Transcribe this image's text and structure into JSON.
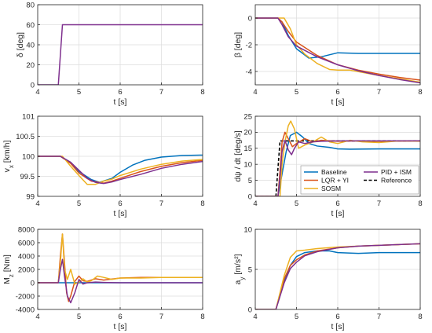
{
  "colors": {
    "baseline": "#0072BD",
    "lqr": "#D95319",
    "sosm": "#EDB120",
    "pid": "#7E2F8E",
    "reference": "#000000",
    "axis": "#262626",
    "grid": "#dcdcdc"
  },
  "chart_data": [
    {
      "type": "line",
      "id": "delta",
      "xlabel": "t [s]",
      "ylabel": "δ [deg]",
      "xlim": [
        4,
        8
      ],
      "ylim": [
        0,
        80
      ],
      "xticks": [
        4,
        5,
        6,
        7,
        8
      ],
      "yticks": [
        0,
        20,
        40,
        60,
        80
      ],
      "grid": true,
      "series": [
        {
          "key": "pid",
          "x": [
            4,
            4.5,
            4.6,
            8
          ],
          "y": [
            0,
            0,
            60,
            60
          ]
        }
      ]
    },
    {
      "type": "line",
      "id": "beta",
      "xlabel": "t [s]",
      "ylabel": "β [deg]",
      "xlim": [
        4,
        8
      ],
      "ylim": [
        -5,
        1
      ],
      "xticks": [
        4,
        5,
        6,
        7,
        8
      ],
      "yticks": [
        -4,
        -2,
        0
      ],
      "grid": true,
      "series": [
        {
          "key": "baseline",
          "x": [
            4,
            4.55,
            4.65,
            4.8,
            5.0,
            5.3,
            5.6,
            6.0,
            6.5,
            7.0,
            8.0
          ],
          "y": [
            0,
            0,
            -0.3,
            -1.3,
            -2.3,
            -3.0,
            -2.9,
            -2.6,
            -2.65,
            -2.65,
            -2.65
          ]
        },
        {
          "key": "lqr",
          "x": [
            4,
            4.55,
            4.65,
            4.8,
            5.0,
            5.5,
            6.0,
            6.5,
            7.0,
            7.5,
            8.0
          ],
          "y": [
            0,
            0,
            -0.3,
            -1.0,
            -1.8,
            -2.8,
            -3.5,
            -3.9,
            -4.2,
            -4.45,
            -4.65
          ]
        },
        {
          "key": "sosm",
          "x": [
            4,
            4.6,
            4.7,
            4.85,
            5.0,
            5.2,
            5.5,
            5.8,
            6.0,
            6.3,
            7.0,
            8.0
          ],
          "y": [
            0,
            0,
            0,
            -0.8,
            -2.0,
            -2.7,
            -3.4,
            -3.85,
            -3.9,
            -3.9,
            -4.3,
            -4.8
          ]
        },
        {
          "key": "pid",
          "x": [
            4,
            4.55,
            4.65,
            4.8,
            5.0,
            5.5,
            6.0,
            6.5,
            7.0,
            7.5,
            8.0
          ],
          "y": [
            0,
            0,
            -0.5,
            -1.4,
            -2.1,
            -2.9,
            -3.5,
            -3.95,
            -4.3,
            -4.6,
            -4.85
          ]
        }
      ]
    },
    {
      "type": "line",
      "id": "vx",
      "xlabel": "t [s]",
      "ylabel": "v_x [km/h]",
      "xlim": [
        4,
        8
      ],
      "ylim": [
        99,
        101
      ],
      "xticks": [
        4,
        5,
        6,
        7,
        8
      ],
      "yticks": [
        99,
        99.5,
        100,
        100.5,
        101
      ],
      "grid": true,
      "series": [
        {
          "key": "baseline",
          "x": [
            4,
            4.55,
            4.8,
            5.0,
            5.3,
            5.5,
            5.8,
            6.0,
            6.3,
            6.6,
            7.0,
            7.5,
            8.0
          ],
          "y": [
            100,
            100,
            99.85,
            99.62,
            99.42,
            99.35,
            99.45,
            99.6,
            99.78,
            99.9,
            99.98,
            100.02,
            100.03
          ]
        },
        {
          "key": "lqr",
          "x": [
            4,
            4.55,
            4.8,
            5.0,
            5.3,
            5.6,
            5.8,
            6.0,
            6.5,
            7.0,
            7.5,
            8.0
          ],
          "y": [
            100,
            100,
            99.82,
            99.58,
            99.38,
            99.33,
            99.38,
            99.45,
            99.62,
            99.75,
            99.84,
            99.9
          ]
        },
        {
          "key": "sosm",
          "x": [
            4,
            4.6,
            4.8,
            5.0,
            5.2,
            5.4,
            5.6,
            5.8,
            6.0,
            6.5,
            7.0,
            7.5,
            8.0
          ],
          "y": [
            100,
            100,
            99.75,
            99.52,
            99.3,
            99.3,
            99.38,
            99.43,
            99.52,
            99.68,
            99.8,
            99.88,
            99.92
          ]
        },
        {
          "key": "pid",
          "x": [
            4,
            4.55,
            4.8,
            5.0,
            5.2,
            5.4,
            5.6,
            5.8,
            6.0,
            6.5,
            7.0,
            7.5,
            8.0
          ],
          "y": [
            100,
            100,
            99.85,
            99.65,
            99.45,
            99.35,
            99.32,
            99.36,
            99.42,
            99.55,
            99.7,
            99.8,
            99.87
          ]
        }
      ]
    },
    {
      "type": "line",
      "id": "yawrate",
      "xlabel": "t [s]",
      "ylabel": "dψ / dt [deg/s]",
      "xlim": [
        4,
        8
      ],
      "ylim": [
        0,
        25
      ],
      "xticks": [
        4,
        5,
        6,
        7,
        8
      ],
      "yticks": [
        0,
        5,
        10,
        15,
        20,
        25
      ],
      "grid": true,
      "legend": {
        "placement": "lower-right",
        "columns": 2,
        "entries": [
          {
            "key": "baseline",
            "label": "Baseline",
            "dashed": false
          },
          {
            "key": "pid",
            "label": "PID + ISM",
            "dashed": false
          },
          {
            "key": "lqr",
            "label": "LQR + YI",
            "dashed": false
          },
          {
            "key": "reference",
            "label": "Reference",
            "dashed": true
          },
          {
            "key": "sosm",
            "label": "SOSM",
            "dashed": false
          }
        ]
      },
      "series": [
        {
          "key": "reference",
          "dashed": true,
          "x": [
            4,
            4.5,
            4.6,
            8
          ],
          "y": [
            0,
            0,
            17.3,
            17.3
          ]
        },
        {
          "key": "baseline",
          "x": [
            4,
            4.55,
            4.65,
            4.75,
            4.85,
            5.0,
            5.15,
            5.3,
            5.5,
            5.8,
            6.0,
            6.3,
            7.0,
            8.0
          ],
          "y": [
            0,
            0,
            7,
            14,
            19,
            20,
            18.5,
            16.5,
            15.7,
            15.3,
            14.8,
            14.7,
            14.8,
            14.8
          ]
        },
        {
          "key": "lqr",
          "x": [
            4,
            4.55,
            4.6,
            4.65,
            4.72,
            4.8,
            4.9,
            5.0,
            5.2,
            5.4,
            5.6,
            6.0,
            6.5,
            7.0,
            8.0
          ],
          "y": [
            0,
            0,
            8,
            17,
            20,
            18,
            15.5,
            16.5,
            18,
            17,
            17.5,
            17.2,
            17.3,
            17.2,
            17.3
          ]
        },
        {
          "key": "sosm",
          "x": [
            4,
            4.6,
            4.65,
            4.72,
            4.8,
            4.86,
            4.95,
            5.05,
            5.2,
            5.4,
            5.6,
            5.8,
            6.0,
            6.3,
            6.6,
            7.0,
            7.5,
            8.0
          ],
          "y": [
            0,
            0,
            10,
            17,
            22,
            23.5,
            21,
            15,
            16,
            17,
            18.5,
            17,
            16.5,
            17.5,
            17,
            16.8,
            17.3,
            17.2
          ]
        },
        {
          "key": "pid",
          "x": [
            4,
            4.55,
            4.6,
            4.65,
            4.72,
            4.8,
            4.88,
            4.95,
            5.05,
            5.2,
            5.4,
            5.6,
            6.0,
            7.0,
            8.0
          ],
          "y": [
            0,
            0,
            6,
            14,
            17.5,
            14.5,
            13,
            15,
            17,
            16.5,
            17,
            17.2,
            17.3,
            17.3,
            17.3
          ]
        }
      ]
    },
    {
      "type": "line",
      "id": "mz",
      "xlabel": "t [s]",
      "ylabel": "M_z [Nm]",
      "xlim": [
        4,
        8
      ],
      "ylim": [
        -4000,
        8000
      ],
      "xticks": [
        4,
        5,
        6,
        7,
        8
      ],
      "yticks": [
        -4000,
        -2000,
        0,
        2000,
        4000,
        6000,
        8000
      ],
      "grid": true,
      "series": [
        {
          "key": "baseline",
          "x": [
            4,
            8
          ],
          "y": [
            0,
            0
          ]
        },
        {
          "key": "lqr",
          "x": [
            4,
            4.5,
            4.55,
            4.6,
            4.65,
            4.7,
            4.75,
            4.8,
            4.9,
            5.0,
            5.1,
            5.2,
            5.4,
            5.6,
            6.0,
            6.5,
            7.0,
            8.0
          ],
          "y": [
            0,
            0,
            4000,
            7300,
            3000,
            -1500,
            -2800,
            -2000,
            200,
            1000,
            300,
            200,
            600,
            400,
            700,
            800,
            800,
            800
          ]
        },
        {
          "key": "sosm",
          "x": [
            4,
            4.5,
            4.55,
            4.6,
            4.65,
            4.72,
            4.8,
            4.9,
            5.0,
            5.1,
            5.2,
            5.3,
            5.45,
            5.6,
            5.8,
            6.0,
            6.5,
            7.0,
            8.0
          ],
          "y": [
            0,
            0,
            3000,
            7300,
            2000,
            500,
            2000,
            -200,
            100,
            600,
            100,
            300,
            1000,
            800,
            500,
            700,
            700,
            800,
            800
          ]
        },
        {
          "key": "pid",
          "x": [
            4,
            4.5,
            4.55,
            4.6,
            4.65,
            4.72,
            4.8,
            4.9,
            5.0,
            5.1,
            5.2,
            5.4,
            5.6,
            6.0,
            7.0,
            8.0
          ],
          "y": [
            0,
            0,
            2000,
            3500,
            1000,
            -2000,
            -3000,
            -1500,
            500,
            -200,
            0,
            100,
            50,
            0,
            0,
            0
          ]
        }
      ]
    },
    {
      "type": "line",
      "id": "ay",
      "xlabel": "t [s]",
      "ylabel": "a_y [m/s²]",
      "xlim": [
        4,
        8
      ],
      "ylim": [
        0,
        10
      ],
      "xticks": [
        4,
        5,
        6,
        7,
        8
      ],
      "yticks": [
        0,
        5,
        10
      ],
      "grid": true,
      "series": [
        {
          "key": "baseline",
          "x": [
            4,
            4.5,
            4.7,
            4.85,
            5.0,
            5.2,
            5.5,
            5.8,
            6.0,
            6.5,
            7.0,
            8.0
          ],
          "y": [
            0,
            0,
            3.5,
            5.5,
            6.6,
            7.1,
            7.3,
            7.3,
            7.1,
            7.0,
            7.1,
            7.1
          ]
        },
        {
          "key": "lqr",
          "x": [
            4,
            4.5,
            4.7,
            4.85,
            5.0,
            5.2,
            5.5,
            6.0,
            6.5,
            7.0,
            8.0
          ],
          "y": [
            0,
            0,
            3.8,
            5.5,
            6.2,
            6.8,
            7.3,
            7.7,
            7.9,
            8.0,
            8.2
          ]
        },
        {
          "key": "sosm",
          "x": [
            4,
            4.5,
            4.7,
            4.85,
            5.0,
            5.2,
            5.5,
            6.0,
            6.5,
            7.0,
            8.0
          ],
          "y": [
            0,
            0,
            4.2,
            6.5,
            7.3,
            7.4,
            7.6,
            7.8,
            7.9,
            8.0,
            8.2
          ]
        },
        {
          "key": "pid",
          "x": [
            4,
            4.5,
            4.7,
            4.85,
            5.0,
            5.2,
            5.5,
            6.0,
            6.5,
            7.0,
            8.0
          ],
          "y": [
            0,
            0,
            3.3,
            5.1,
            5.9,
            6.7,
            7.2,
            7.7,
            7.9,
            8.0,
            8.2
          ]
        }
      ]
    }
  ]
}
